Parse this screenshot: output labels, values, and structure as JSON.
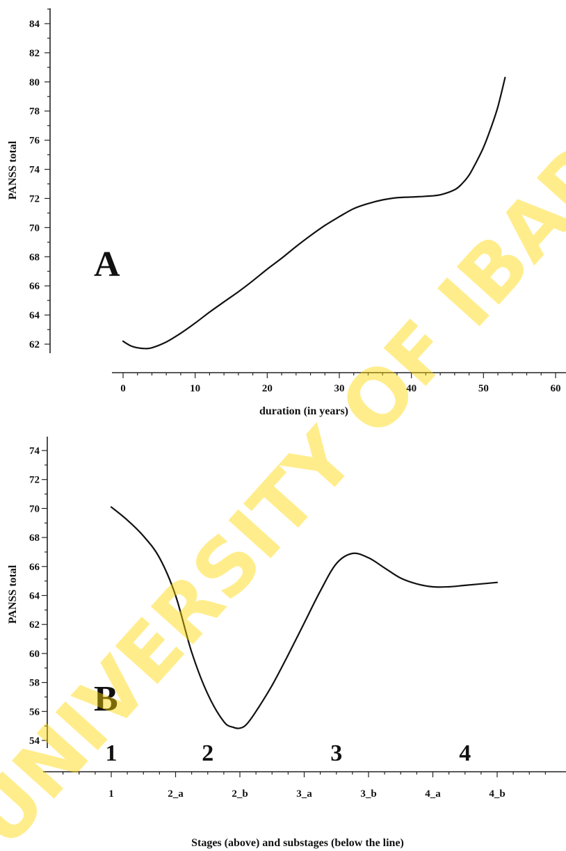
{
  "watermark": "UNIVERSITY OF IBADAN MAIN LIBRARY",
  "chart_data": [
    {
      "type": "line",
      "panel_label": "A",
      "xlabel": "duration (in years)",
      "ylabel": "PANSS total",
      "xlim": [
        0,
        60
      ],
      "ylim": [
        61,
        85
      ],
      "xticks": [
        "0",
        "10",
        "20",
        "30",
        "40",
        "50",
        "60"
      ],
      "yticks": [
        "62",
        "64",
        "66",
        "68",
        "70",
        "72",
        "74",
        "76",
        "78",
        "80",
        "82",
        "84"
      ],
      "grid": false,
      "series": [
        {
          "x": [
            0,
            1,
            2,
            3,
            4,
            6,
            8,
            10,
            12,
            14,
            16,
            18,
            20,
            22,
            24,
            26,
            28,
            30,
            32,
            34,
            36,
            38,
            40,
            42,
            44,
            46,
            47,
            48,
            49,
            50,
            51,
            52,
            53
          ],
          "y": [
            62.2,
            61.9,
            61.75,
            61.7,
            61.75,
            62.15,
            62.75,
            63.45,
            64.2,
            64.9,
            65.6,
            66.35,
            67.15,
            67.9,
            68.7,
            69.45,
            70.15,
            70.75,
            71.3,
            71.65,
            71.9,
            72.05,
            72.1,
            72.15,
            72.25,
            72.6,
            73.0,
            73.6,
            74.5,
            75.5,
            76.8,
            78.3,
            80.3
          ]
        }
      ]
    },
    {
      "type": "line",
      "panel_label": "B",
      "xlabel": "Stages (above) and substages (below the line)",
      "ylabel": "PANSS total",
      "ylim": [
        53,
        75
      ],
      "categories": [
        "1",
        "2_a",
        "2_b",
        "3_a",
        "3_b",
        "4_a",
        "4_b"
      ],
      "stages": [
        "1",
        "2",
        "3",
        "4"
      ],
      "yticks": [
        "54",
        "56",
        "58",
        "60",
        "62",
        "64",
        "66",
        "68",
        "70",
        "72",
        "74"
      ],
      "grid": false,
      "series": [
        {
          "x": [
            1,
            1.25,
            1.5,
            1.75,
            2,
            2.25,
            2.5,
            2.75,
            2.9,
            3,
            3.1,
            3.25,
            3.5,
            3.75,
            4,
            4.25,
            4.5,
            4.75,
            5,
            5.25,
            5.5,
            5.75,
            6,
            6.25,
            6.5,
            6.75,
            7
          ],
          "y": [
            70.1,
            69.2,
            68.1,
            66.6,
            64.0,
            60.1,
            57.2,
            55.3,
            54.9,
            54.85,
            55.1,
            56.0,
            57.8,
            59.9,
            62.1,
            64.3,
            66.2,
            66.9,
            66.6,
            65.9,
            65.2,
            64.8,
            64.6,
            64.6,
            64.7,
            64.8,
            64.9
          ]
        }
      ]
    }
  ]
}
